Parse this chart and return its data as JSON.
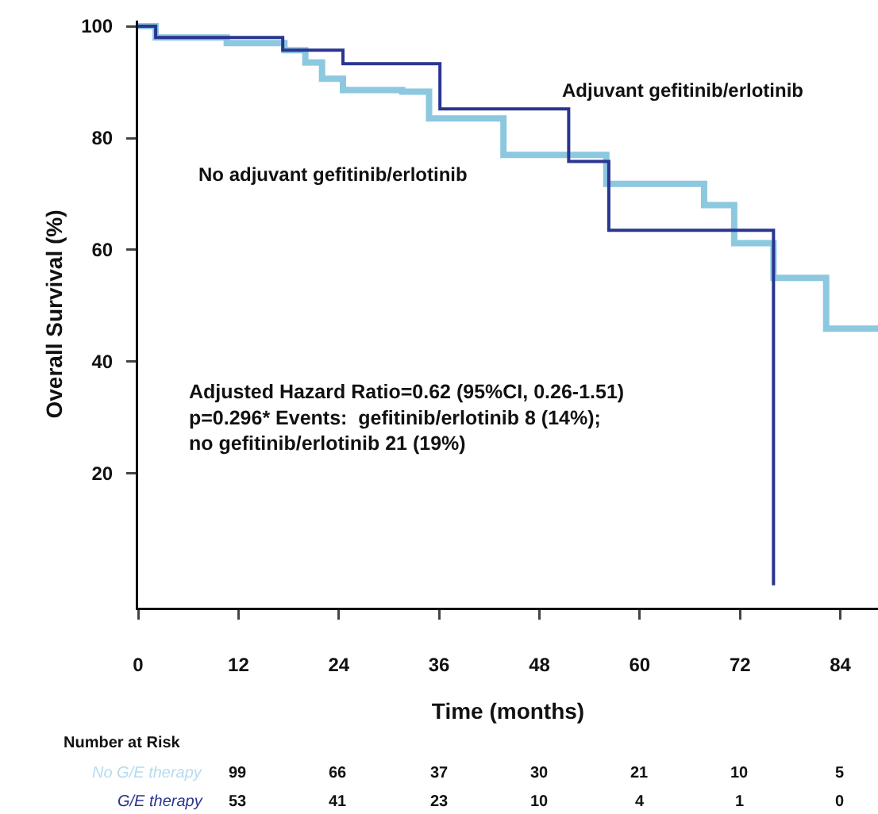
{
  "chart_data": {
    "type": "step",
    "ylabel": "Overall Survival (%)",
    "xlabel": "Time (months)",
    "xlim": [
      0,
      88.5
    ],
    "xticks": [
      0,
      12,
      24,
      36,
      48,
      60,
      72,
      84
    ],
    "ylim": [
      -4,
      101
    ],
    "yticks": [
      20,
      40,
      60,
      80,
      100
    ],
    "grid": false,
    "legend": false,
    "marker": "none",
    "line_style": "solid",
    "series": [
      {
        "name": "No adjuvant gefitinib/erlotinib",
        "color": "#8cc8e0",
        "x": [
          0,
          2.1,
          10.6,
          17.5,
          20,
          22,
          24.5,
          31.6,
          34.8,
          43.7,
          56,
          67.7,
          71.3,
          76,
          82.3,
          88.5
        ],
        "values": [
          100,
          98,
          97,
          95.7,
          93.5,
          90.6,
          88.6,
          88.3,
          83.5,
          77,
          71.8,
          68,
          61.2,
          55,
          45.9,
          45.9
        ]
      },
      {
        "name": "Adjuvant gefitinib/erlotinib",
        "color": "#2a3590",
        "x": [
          0,
          2.1,
          17.3,
          24.5,
          36.1,
          51.5,
          56.3,
          76
        ],
        "values": [
          100,
          98,
          95.7,
          93.3,
          85.2,
          75.8,
          63.5,
          0
        ]
      }
    ],
    "annotations": [
      "Adjusted Hazard Ratio=0.62 (95%CI, 0.26-1.51)\np=0.296* Events:  gefitinib/erlotinib 8 (14%);\nno gefitinib/erlotinib 21 (19%)",
      "Number at Risk",
      "No G/E therapy",
      "99",
      "66",
      "37",
      "30",
      "21",
      "10",
      "5",
      "G/E therapy",
      "53",
      "41",
      "23",
      "10",
      "4",
      "1",
      "0"
    ]
  }
}
